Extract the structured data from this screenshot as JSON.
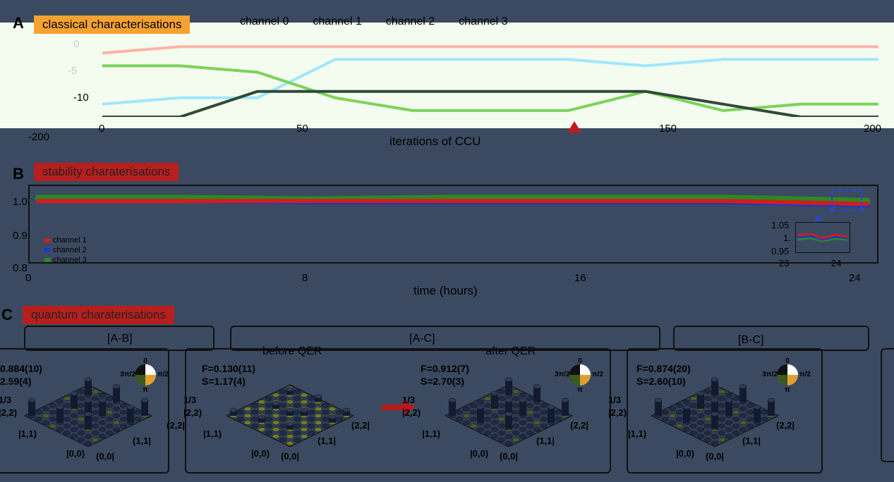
{
  "colors": {
    "page_bg": "#3b4a60",
    "panelA_bg": "#f4fbef",
    "tagA": "#f6a233",
    "tagB": "#b71e1e",
    "tagC": "#b71e1e",
    "ch0": "#ffb3a8",
    "ch1": "#9fe8ff",
    "ch2": "#7bd35a",
    "ch3": "#2f4a38",
    "stab_red": "#d01d1d",
    "stab_blue": "#1b38c9",
    "stab_green": "#2a8a24",
    "arrow": "#b51b1b"
  },
  "panelA": {
    "letter": "A",
    "tag": "classical characterisations",
    "legend": [
      "channel 0",
      "channel 1",
      "channel 2",
      "channel 3"
    ],
    "xlabel": "iterations of CCU",
    "yticks": [
      "0",
      "-5",
      "-10"
    ],
    "xticks": [
      "0",
      "50",
      "150",
      "200"
    ],
    "left_tick": "-200"
  },
  "panelB": {
    "letter": "B",
    "tag": "stability charaterisations",
    "xlabel": "time (hours)",
    "yticks": [
      "1.0",
      "0.9",
      "0.8"
    ],
    "xticks": [
      "0",
      "8",
      "16",
      "24"
    ],
    "legend": [
      "channel 1",
      "channel 2",
      "channel 3"
    ],
    "inset": {
      "yticks": [
        "1.05",
        "1.",
        "0.95"
      ],
      "xticks": [
        "23",
        "24"
      ]
    }
  },
  "panelC": {
    "letter": "C",
    "tag": "quantum charaterisations",
    "boxes": [
      {
        "title": "[A-B]",
        "fidelity": "0.884(10)",
        "s": "2.59(4)"
      },
      {
        "title": "[A-C]",
        "sub_before": "before QER",
        "sub_after": "after QER",
        "before": {
          "fidelity": "F=0.130(11)",
          "s": "S=1.17(4)"
        },
        "after": {
          "fidelity": "F=0.912(7)",
          "s": "S=2.70(3)"
        }
      },
      {
        "title": "[B-C]",
        "fidelity": "F=0.874(20)",
        "s": "S=2.60(10)"
      }
    ],
    "axis_labels": [
      "1/3",
      "|2,2)",
      "|1,1)",
      "|0,0)",
      "(0,0|",
      "(1,1|",
      "(2,2|"
    ],
    "phase_labels": [
      "0",
      "π/2",
      "π",
      "3π/2"
    ]
  },
  "chart_data": [
    {
      "type": "line",
      "title": "classical characterisations",
      "xlabel": "iterations of CCU",
      "ylabel": "",
      "xlim": [
        0,
        200
      ],
      "ylim": [
        -12,
        1
      ],
      "series": [
        {
          "name": "channel 0",
          "x": [
            0,
            20,
            40,
            60,
            80,
            100,
            120,
            140,
            160,
            180,
            200
          ],
          "values": [
            -2,
            -1,
            -1,
            -1,
            -1,
            -1,
            -1,
            -1,
            -1,
            -1,
            -1
          ]
        },
        {
          "name": "channel 1",
          "x": [
            0,
            20,
            40,
            60,
            80,
            100,
            120,
            140,
            160,
            180,
            200
          ],
          "values": [
            -10,
            -9,
            -9,
            -3,
            -3,
            -3,
            -3,
            -4,
            -3,
            -3,
            -3
          ]
        },
        {
          "name": "channel 2",
          "x": [
            0,
            20,
            40,
            60,
            80,
            100,
            120,
            140,
            160,
            180,
            200
          ],
          "values": [
            -4,
            -4,
            -5,
            -9,
            -11,
            -11,
            -11,
            -8,
            -11,
            -10,
            -10
          ]
        },
        {
          "name": "channel 3",
          "x": [
            0,
            20,
            40,
            60,
            80,
            100,
            120,
            140,
            160,
            180,
            200
          ],
          "values": [
            -12,
            -12,
            -8,
            -8,
            -8,
            -8,
            -8,
            -8,
            -10,
            -12,
            -12
          ]
        }
      ]
    },
    {
      "type": "line",
      "title": "stability charaterisations",
      "xlabel": "time (hours)",
      "ylabel": "",
      "xlim": [
        0,
        24
      ],
      "ylim": [
        0.8,
        1.05
      ],
      "series": [
        {
          "name": "channel 1",
          "x": [
            0,
            4,
            8,
            12,
            16,
            20,
            24
          ],
          "values": [
            1.0,
            1.0,
            1.0,
            1.0,
            1.0,
            1.0,
            0.99
          ]
        },
        {
          "name": "channel 2",
          "x": [
            0,
            4,
            8,
            12,
            16,
            20,
            24
          ],
          "values": [
            1.0,
            1.0,
            0.995,
            0.995,
            0.995,
            0.995,
            0.985
          ]
        },
        {
          "name": "channel 3",
          "x": [
            0,
            4,
            8,
            12,
            16,
            20,
            24
          ],
          "values": [
            1.01,
            1.01,
            1.005,
            1.01,
            1.01,
            1.01,
            1.0
          ]
        }
      ]
    }
  ]
}
